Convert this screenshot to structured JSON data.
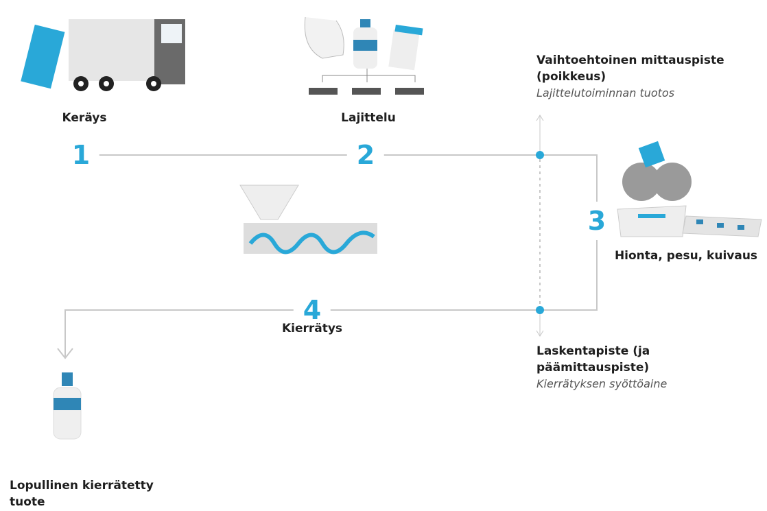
{
  "steps": [
    {
      "number": "1",
      "label": "Keräys"
    },
    {
      "number": "2",
      "label": "Lajittelu"
    },
    {
      "number": "3",
      "label": "Hionta, pesu, kuivaus"
    },
    {
      "number": "4",
      "label": "Kierrätys"
    }
  ],
  "measurement_points": [
    {
      "title": "Vaihtoehtoinen mittauspiste (poikkeus)",
      "subtitle": "Lajittelutoiminnan tuotos"
    },
    {
      "title": "Laskentapiste (ja päämittauspiste)",
      "subtitle": "Kierrätyksen syöttöaine"
    }
  ],
  "final_product": "Lopullinen kierrätetty tuote"
}
